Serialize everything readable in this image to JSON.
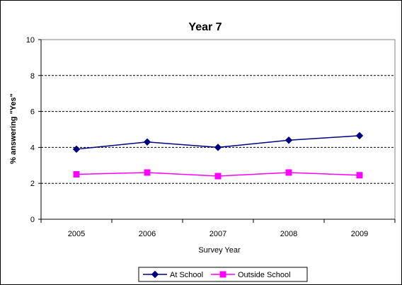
{
  "chart_data": {
    "type": "line",
    "title": "Year 7",
    "xlabel": "Survey Year",
    "ylabel": "% answering \"Yes\"",
    "categories": [
      "2005",
      "2006",
      "2007",
      "2008",
      "2009"
    ],
    "ylim": [
      0,
      10
    ],
    "yticks": [
      0,
      2,
      4,
      6,
      8,
      10
    ],
    "grid": "horizontal dashed",
    "legend_position": "bottom",
    "series": [
      {
        "name": "At School",
        "values": [
          3.9,
          4.3,
          4.0,
          4.4,
          4.65
        ],
        "color": "#000080",
        "marker": "diamond"
      },
      {
        "name": "Outside School",
        "values": [
          2.5,
          2.6,
          2.4,
          2.6,
          2.45
        ],
        "color": "#FF00FF",
        "marker": "square"
      }
    ]
  }
}
